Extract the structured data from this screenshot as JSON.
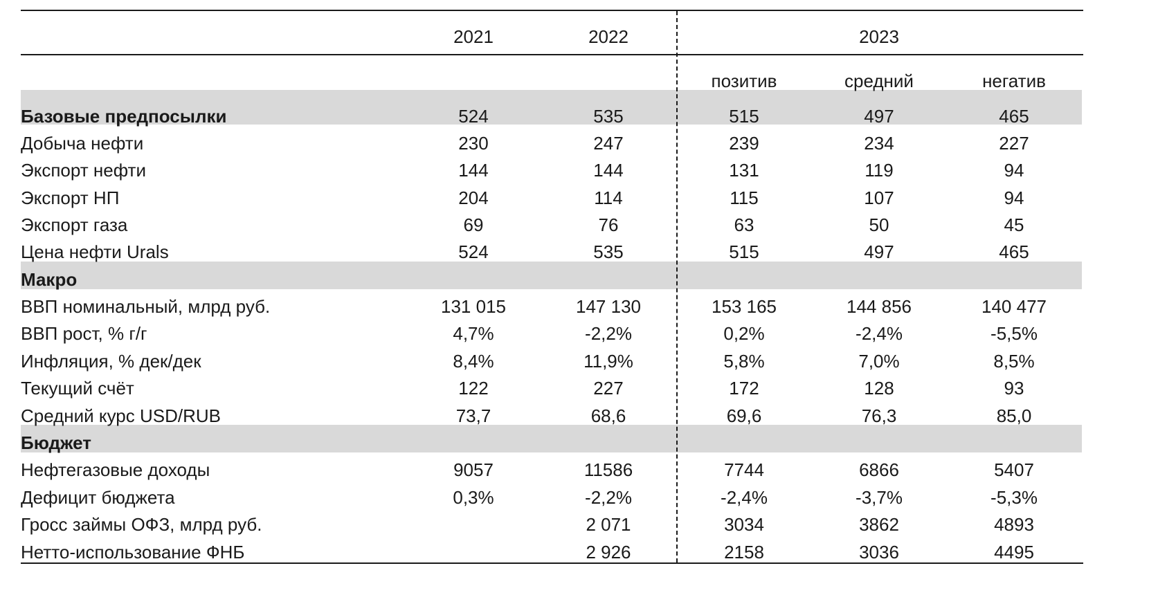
{
  "header": {
    "years": [
      "2021",
      "2022"
    ],
    "year_2023": "2023",
    "scenarios": [
      "позитив",
      "средний",
      "негатив"
    ]
  },
  "rows": [
    {
      "label": "Базовые предпосылки",
      "section": true,
      "values": [
        "524",
        "535",
        "515",
        "497",
        "465"
      ]
    },
    {
      "label": "Добыча нефти",
      "section": false,
      "values": [
        "230",
        "247",
        "239",
        "234",
        "227"
      ]
    },
    {
      "label": "Экспорт нефти",
      "section": false,
      "values": [
        "144",
        "144",
        "131",
        "119",
        "94"
      ]
    },
    {
      "label": "Экспорт НП",
      "section": false,
      "values": [
        "204",
        "114",
        "115",
        "107",
        "94"
      ]
    },
    {
      "label": "Экспорт газа",
      "section": false,
      "values": [
        "69",
        "76",
        "63",
        "50",
        "45"
      ]
    },
    {
      "label": "Цена нефти Urals",
      "section": false,
      "values": [
        "524",
        "535",
        "515",
        "497",
        "465"
      ]
    },
    {
      "label": "Макро",
      "section": true,
      "values": [
        "",
        "",
        "",
        "",
        ""
      ]
    },
    {
      "label": "ВВП номинальный, млрд руб.",
      "section": false,
      "values": [
        "131 015",
        "147 130",
        "153 165",
        "144 856",
        "140 477"
      ]
    },
    {
      "label": "ВВП рост, % г/г",
      "section": false,
      "values": [
        "4,7%",
        "-2,2%",
        "0,2%",
        "-2,4%",
        "-5,5%"
      ]
    },
    {
      "label": "Инфляция, % дек/дек",
      "section": false,
      "values": [
        "8,4%",
        "11,9%",
        "5,8%",
        "7,0%",
        "8,5%"
      ]
    },
    {
      "label": "Текущий счёт",
      "section": false,
      "values": [
        "122",
        "227",
        "172",
        "128",
        "93"
      ]
    },
    {
      "label": "Средний курс USD/RUB",
      "section": false,
      "values": [
        "73,7",
        "68,6",
        "69,6",
        "76,3",
        "85,0"
      ]
    },
    {
      "label": "Бюджет",
      "section": true,
      "values": [
        "",
        "",
        "",
        "",
        ""
      ]
    },
    {
      "label": "Нефтегазовые доходы",
      "section": false,
      "values": [
        "9057",
        "11586",
        "7744",
        "6866",
        "5407"
      ]
    },
    {
      "label": "Дефицит бюджета",
      "section": false,
      "values": [
        "0,3%",
        "-2,2%",
        "-2,4%",
        "-3,7%",
        "-5,3%"
      ]
    },
    {
      "label": "Гросс займы ОФЗ, млрд руб.",
      "section": false,
      "values": [
        "",
        "2 071",
        "3034",
        "3862",
        "4893"
      ]
    },
    {
      "label": "Нетто-использование ФНБ",
      "section": false,
      "values": [
        "",
        "2 926",
        "2158",
        "3036",
        "4495"
      ]
    }
  ]
}
